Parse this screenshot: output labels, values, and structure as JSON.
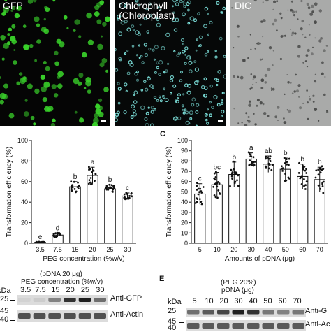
{
  "panels": {
    "gfp_label": "GFP",
    "chl_label_1": "Chlorophyll",
    "chl_label_2": "(Chloroplast)",
    "dic_label": "DIC",
    "letter_c": "C",
    "letter_e": "E"
  },
  "colors": {
    "gfp_dot": "#39d12a",
    "chl_dot": "#7fe6e0",
    "dic_bg": "#a9aaa9",
    "bar_fill": "#ffffff",
    "axis": "#111111"
  },
  "chart_data": [
    {
      "type": "bar",
      "categories": [
        "3.5",
        "7.5",
        "15",
        "20",
        "25",
        "30"
      ],
      "values": [
        1,
        8,
        55,
        66,
        53,
        46
      ],
      "errors": [
        0.5,
        2,
        5,
        8,
        4,
        3
      ],
      "letters": [
        "e",
        "d",
        "b",
        "a",
        "b",
        "c"
      ],
      "ylabel": "Transformation efficiency (%)",
      "xlabel": "PEG concentration (%w/v)",
      "ylim": [
        0,
        100
      ],
      "yticks": [
        0,
        20,
        40,
        60,
        80,
        100
      ]
    },
    {
      "type": "bar",
      "categories": [
        "5",
        "10",
        "20",
        "30",
        "40",
        "50",
        "60",
        "70"
      ],
      "values": [
        48,
        57,
        67,
        82,
        77,
        72,
        65,
        62
      ],
      "errors": [
        10,
        12,
        12,
        6,
        8,
        11,
        12,
        12
      ],
      "letters": [
        "c",
        "bc",
        "b",
        "a",
        "ab",
        "b",
        "b",
        "b"
      ],
      "ylabel": "Transformation efficiency (%)",
      "xlabel": "Amounts of pDNA (μg)",
      "ylim": [
        0,
        100
      ],
      "yticks": [
        0,
        10,
        20,
        30,
        40,
        50,
        60,
        70,
        80,
        90,
        100
      ]
    }
  ],
  "blot_d": {
    "header_1": "(pDNA 20 μg)",
    "header_2": "PEG concentration (%w/v)",
    "kda": "kDa",
    "lanes": [
      "3.5",
      "7.5",
      "15",
      "20",
      "25",
      "30"
    ],
    "mw_top": [
      "25"
    ],
    "mw_bottom": [
      "45",
      "40"
    ],
    "label_gfp": "Anti-GFP",
    "label_actin": "Anti-Actin",
    "gfp_intensity": [
      0.05,
      0.08,
      0.45,
      0.85,
      0.95,
      0.55
    ]
  },
  "blot_e": {
    "header_1": "(PEG 20%)",
    "header_2": "pDNA (μg)",
    "kda": "kDa",
    "lanes": [
      "5",
      "10",
      "20",
      "30",
      "40",
      "50",
      "60",
      "70"
    ],
    "mw_top": [
      "25"
    ],
    "mw_bottom": [
      "45",
      "40"
    ],
    "label_gfp": "Anti-G",
    "label_actin": "Anti-Ac",
    "gfp_intensity": [
      0.55,
      0.65,
      0.75,
      0.95,
      0.85,
      0.5,
      0.45,
      0.5
    ]
  }
}
